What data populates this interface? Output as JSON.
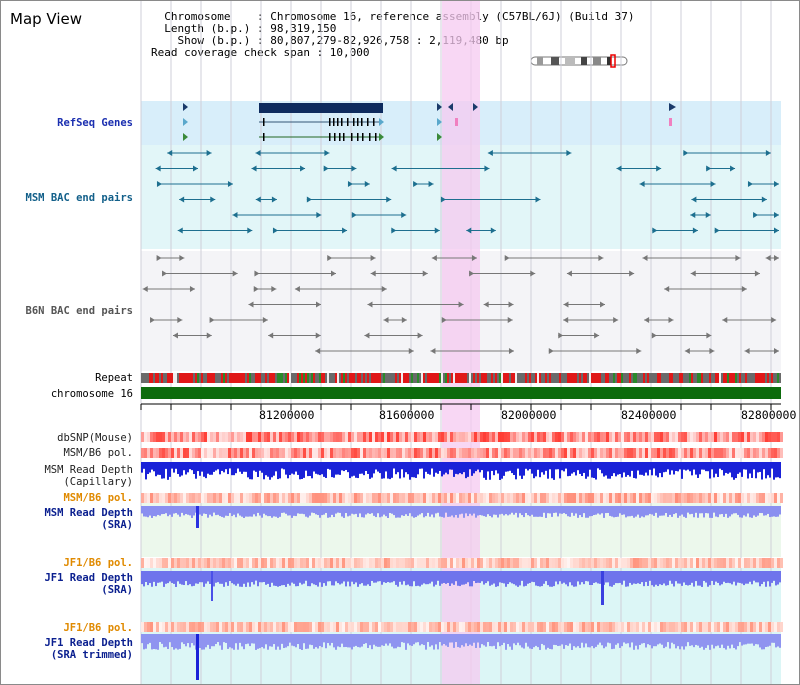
{
  "view": {
    "title": "Map View",
    "info_lines": [
      "  Chromosome    : Chromosome 16, reference assembly (C57BL/6J) (Build 37)",
      "  Length (b.p.) : 98,319,150",
      "    Show (b.p.) : 80,807,279-82,926,758 : 2,119,480 bp",
      "Read coverage check span : 10,000"
    ]
  },
  "tracks": {
    "refseq": "RefSeq Genes",
    "msm_bac": "MSM BAC end pairs",
    "b6n_bac": "B6N BAC end pairs",
    "repeat": "Repeat",
    "chromosome": "chromosome 16",
    "dbsnp": "dbSNP(Mouse)",
    "msm_b6_pol_1": "MSM/B6 pol.",
    "msm_read_depth_cap_1": "MSM Read Depth",
    "msm_read_depth_cap_2": "(Capillary)",
    "msm_b6_pol_2": "MSM/B6 pol.",
    "msm_read_depth_sra_1": "MSM Read Depth",
    "msm_read_depth_sra_2": "(SRA)",
    "jf1_b6_pol_1": "JF1/B6 pol.",
    "jf1_read_depth_sra_1": "JF1 Read Depth",
    "jf1_read_depth_sra_2": "(SRA)",
    "jf1_b6_pol_2": "JF1/B6 pol.",
    "jf1_read_depth_trim_1": "JF1 Read Depth",
    "jf1_read_depth_trim_2": "(SRA trimmed)"
  },
  "axis": {
    "ticks": [
      "81200000",
      "81600000",
      "82000000",
      "82400000",
      "82800000"
    ]
  },
  "colors": {
    "highlight": "#f6c9f0",
    "refseq_bg": "#d8eefa",
    "msm_bg": "#e2f6f8",
    "b6n_bg": "#f2f2f6",
    "chromosome": "#0c6b0c",
    "snp_red": "#ee3322",
    "depth_blue": "#1a22d8",
    "depth_light": "#8a8ff0",
    "light_green_bg": "#ecf8ec",
    "light_cyan_bg": "#dcf6f6"
  }
}
